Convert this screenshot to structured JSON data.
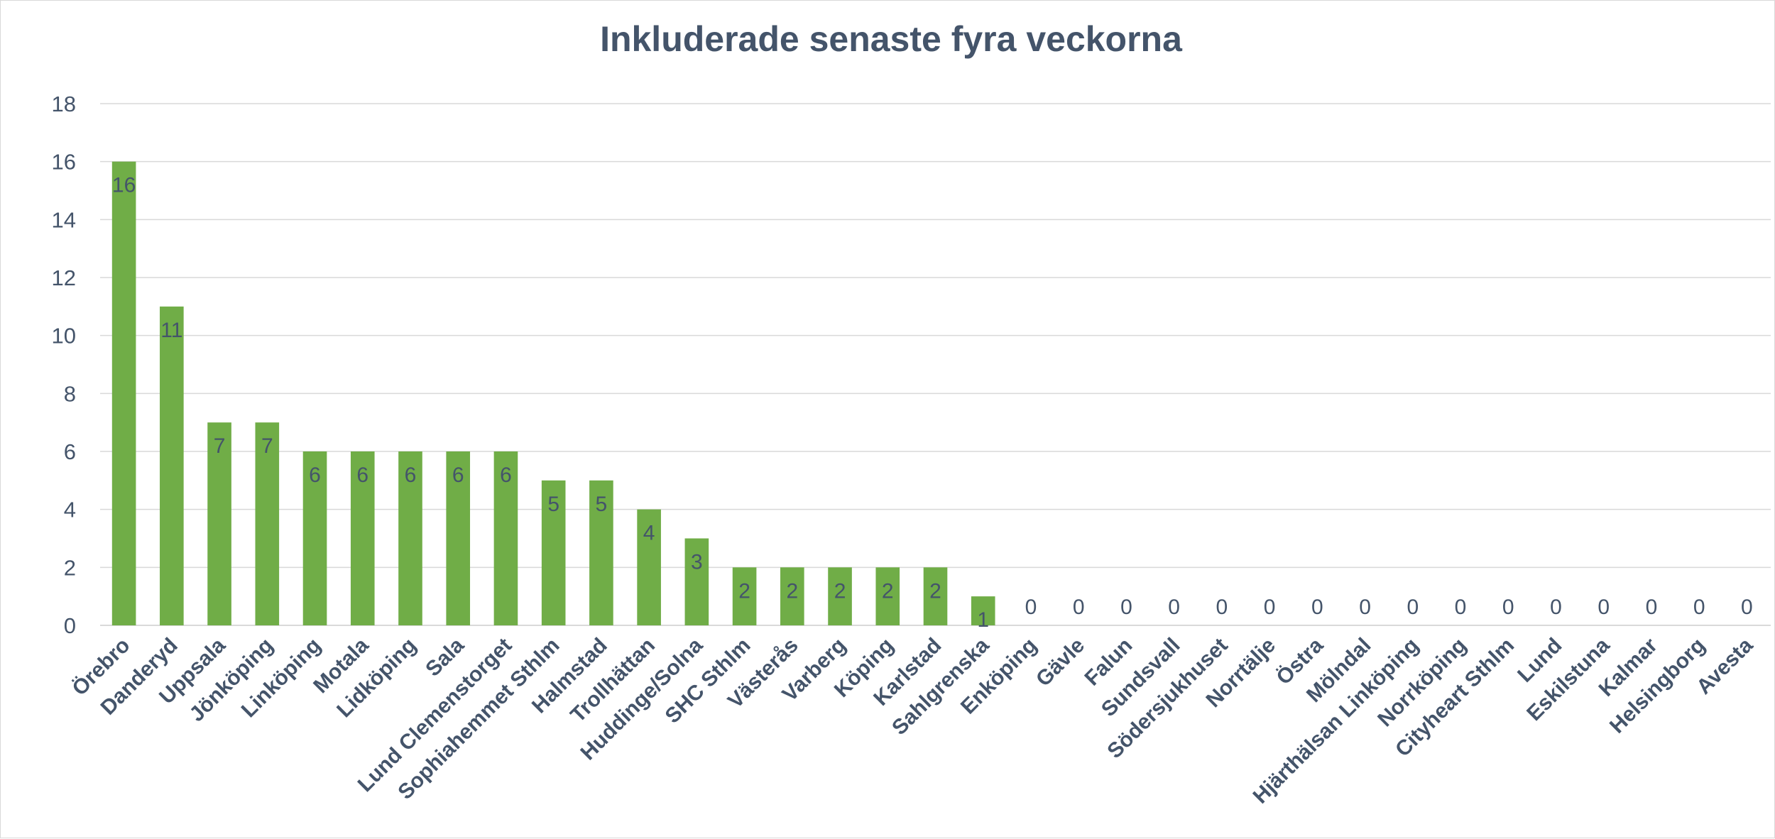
{
  "chart_data": {
    "type": "bar",
    "title": "Inkluderade senaste fyra veckorna",
    "xlabel": "",
    "ylabel": "",
    "ylim": [
      0,
      18
    ],
    "yticks": [
      0,
      2,
      4,
      6,
      8,
      10,
      12,
      14,
      16,
      18
    ],
    "grid": true,
    "legend": "none",
    "bar_color": "#70ad47",
    "text_color": "#44546a",
    "categories": [
      "Örebro",
      "Danderyd",
      "Uppsala",
      "Jönköping",
      "Linköping",
      "Motala",
      "Lidköping",
      "Sala",
      "Lund Clemenstorget",
      "Sophiahemmet Sthlm",
      "Halmstad",
      "Trollhättan",
      "Huddinge/Solna",
      "SHC Sthlm",
      "Västerås",
      "Varberg",
      "Köping",
      "Karlstad",
      "Sahlgrenska",
      "Enköping",
      "Gävle",
      "Falun",
      "Sundsvall",
      "Södersjukhuset",
      "Norrtälje",
      "Östra",
      "Mölndal",
      "Hjärthälsan Linköping",
      "Norrköping",
      "Cityheart Sthlm",
      "Lund",
      "Eskilstuna",
      "Kalmar",
      "Helsingborg",
      "Avesta"
    ],
    "values": [
      16,
      11,
      7,
      7,
      6,
      6,
      6,
      6,
      6,
      5,
      5,
      4,
      3,
      2,
      2,
      2,
      2,
      2,
      1,
      0,
      0,
      0,
      0,
      0,
      0,
      0,
      0,
      0,
      0,
      0,
      0,
      0,
      0,
      0,
      0
    ]
  }
}
